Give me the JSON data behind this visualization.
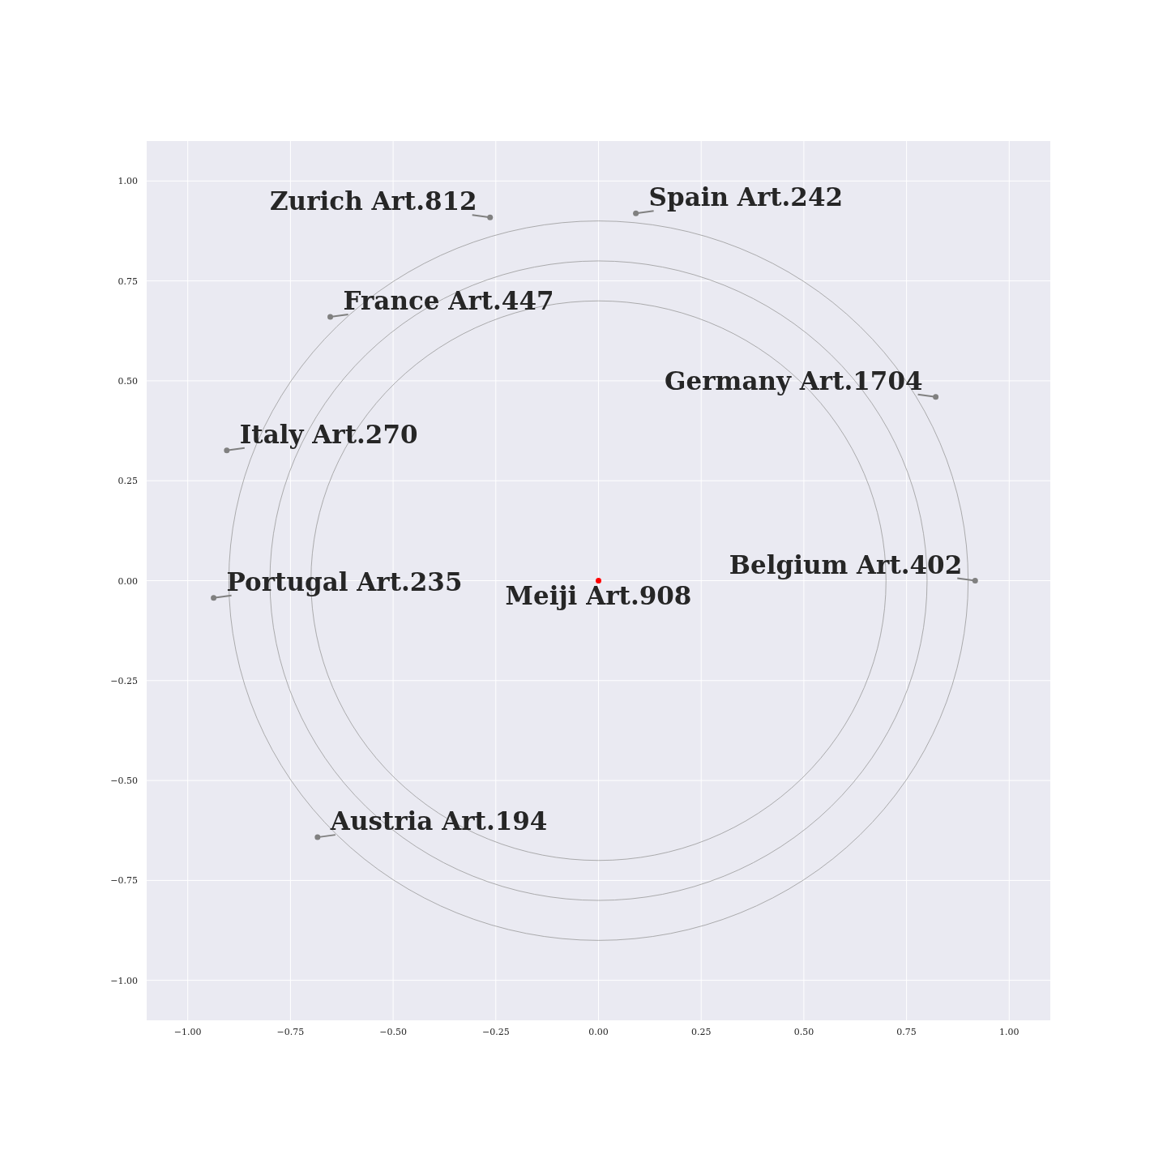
{
  "chart_data": {
    "type": "scatter",
    "xlim": [
      -1.1,
      1.1
    ],
    "ylim": [
      -1.1,
      1.1
    ],
    "xticks": [
      {
        "value": -1,
        "label": "−1.00"
      },
      {
        "value": -0.75,
        "label": "−0.75"
      },
      {
        "value": -0.5,
        "label": "−0.50"
      },
      {
        "value": -0.25,
        "label": "−0.25"
      },
      {
        "value": 0,
        "label": "0.00"
      },
      {
        "value": 0.25,
        "label": "0.25"
      },
      {
        "value": 0.5,
        "label": "0.50"
      },
      {
        "value": 0.75,
        "label": "0.75"
      },
      {
        "value": 1,
        "label": "1.00"
      }
    ],
    "yticks": [
      {
        "value": -1,
        "label": "−1.00"
      },
      {
        "value": -0.75,
        "label": "−0.75"
      },
      {
        "value": -0.5,
        "label": "−0.50"
      },
      {
        "value": -0.25,
        "label": "−0.25"
      },
      {
        "value": 0,
        "label": "0.00"
      },
      {
        "value": 0.25,
        "label": "0.25"
      },
      {
        "value": 0.5,
        "label": "0.50"
      },
      {
        "value": 0.75,
        "label": "0.75"
      },
      {
        "value": 1,
        "label": "1.00"
      }
    ],
    "grid": true,
    "marker": "circle",
    "series": [
      {
        "color": "#808080",
        "x": [
          -0.264,
          0.091,
          -0.653,
          0.821,
          -0.905,
          -0.937,
          0.917,
          -0.684
        ],
        "values": [
          0.909,
          0.919,
          0.66,
          0.46,
          0.326,
          -0.043,
          0,
          -0.642
        ]
      },
      {
        "color": "#ff0000",
        "x": [
          0
        ],
        "values": [
          0
        ]
      }
    ],
    "annotations": [
      {
        "text": "Zurich Art.812",
        "x": -0.264,
        "y": 0.909
      },
      {
        "text": "Spain Art.242",
        "x": 0.091,
        "y": 0.919
      },
      {
        "text": "France Art.447",
        "x": -0.653,
        "y": 0.66
      },
      {
        "text": "Germany Art.1704",
        "x": 0.821,
        "y": 0.46
      },
      {
        "text": "Italy Art.270",
        "x": -0.905,
        "y": 0.326
      },
      {
        "text": "Portugal Art.235",
        "x": -0.937,
        "y": -0.043
      },
      {
        "text": "Belgium Art.402",
        "x": 0.917,
        "y": 0
      },
      {
        "text": "Austria Art.194",
        "x": -0.684,
        "y": -0.642
      },
      {
        "text": "Meiji Art.908",
        "x": 0,
        "y": 0
      }
    ]
  }
}
